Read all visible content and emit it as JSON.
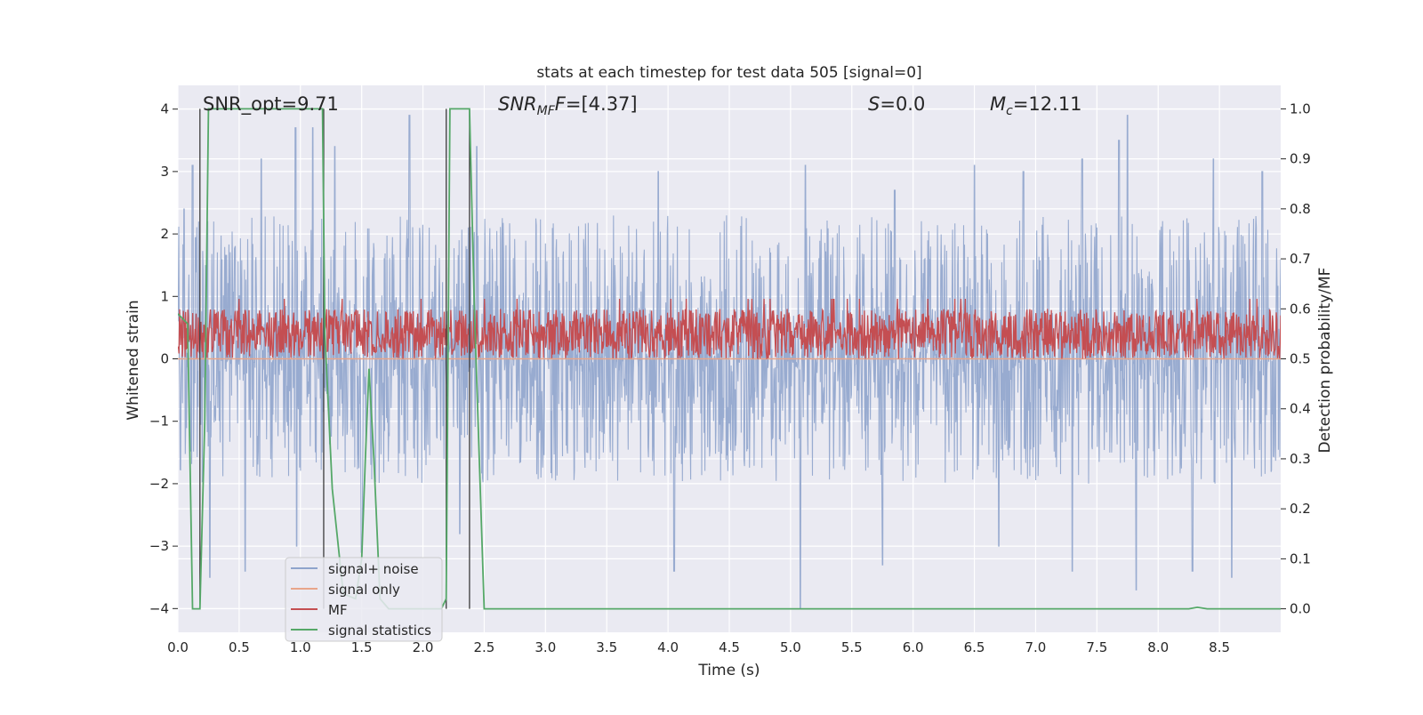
{
  "chart_data": {
    "type": "line",
    "title": "stats at each timestep for test data 505 [signal=0]",
    "xlabel": "Time (s)",
    "ylabel_left": "Whitened strain",
    "ylabel_right": "Detection probability/MF",
    "xlim": [
      0.0,
      9.0
    ],
    "ylim_left": [
      -4.38,
      4.38
    ],
    "ylim_right": [
      -0.047,
      1.047
    ],
    "grid": true,
    "xticks": [
      0.0,
      0.5,
      1.0,
      1.5,
      2.0,
      2.5,
      3.0,
      3.5,
      4.0,
      4.5,
      5.0,
      5.5,
      6.0,
      6.5,
      7.0,
      7.5,
      8.0,
      8.5
    ],
    "xtick_labels": [
      "0.0",
      "0.5",
      "1.0",
      "1.5",
      "2.0",
      "2.5",
      "3.0",
      "3.5",
      "4.0",
      "4.5",
      "5.0",
      "5.5",
      "6.0",
      "6.5",
      "7.0",
      "7.5",
      "8.0",
      "8.5"
    ],
    "yticks_left": [
      4,
      3,
      2,
      1,
      0,
      -1,
      -2,
      -3,
      -4
    ],
    "ytick_labels_left": [
      "4",
      "3",
      "2",
      "1",
      "0",
      "−1",
      "−2",
      "−3",
      "−4"
    ],
    "yticks_right": [
      1.0,
      0.9,
      0.8,
      0.7,
      0.6,
      0.5,
      0.4,
      0.3,
      0.2,
      0.1,
      0.0
    ],
    "ytick_labels_right": [
      "1.0",
      "0.9",
      "0.8",
      "0.7",
      "0.6",
      "0.5",
      "0.4",
      "0.3",
      "0.2",
      "0.1",
      "0.0"
    ],
    "annotations": {
      "snr_opt": "SNR_opt=9.71",
      "snr_mf_name": "SNR",
      "snr_mf_sub": "MF",
      "snr_mf_value": "=[4.37]",
      "s_name": "S",
      "s_value": "=0.0",
      "mc_name": "M",
      "mc_sub": "c",
      "mc_value": "=12.11"
    },
    "vertical_lines_x": [
      0.18,
      1.19,
      2.19,
      2.38
    ],
    "series": [
      {
        "name": "signal+ noise",
        "color": "#8fa4cc",
        "axis": "left",
        "envelope": {
          "upper_typical": 2.3,
          "upper_peak": 4.0,
          "lower_typical": -2.0,
          "lower_peak": -4.0
        },
        "peaks": [
          [
            0.05,
            2.4
          ],
          [
            0.12,
            3.1
          ],
          [
            0.26,
            2.9
          ],
          [
            0.68,
            3.2
          ],
          [
            0.96,
            3.7
          ],
          [
            1.1,
            3.7
          ],
          [
            1.28,
            3.4
          ],
          [
            1.89,
            3.9
          ],
          [
            2.44,
            3.4
          ],
          [
            3.92,
            3.0
          ],
          [
            5.12,
            3.1
          ],
          [
            5.85,
            2.7
          ],
          [
            6.5,
            3.1
          ],
          [
            6.9,
            3.0
          ],
          [
            7.38,
            3.2
          ],
          [
            7.75,
            3.9
          ],
          [
            7.68,
            3.5
          ],
          [
            8.45,
            3.2
          ],
          [
            8.85,
            3.0
          ]
        ],
        "troughs": [
          [
            0.26,
            -3.5
          ],
          [
            0.55,
            -3.4
          ],
          [
            0.97,
            -3.0
          ],
          [
            1.5,
            -3.1
          ],
          [
            2.3,
            -2.8
          ],
          [
            4.05,
            -3.4
          ],
          [
            5.08,
            -4.0
          ],
          [
            5.75,
            -3.3
          ],
          [
            6.7,
            -3.0
          ],
          [
            7.3,
            -3.4
          ],
          [
            7.82,
            -3.7
          ],
          [
            8.28,
            -3.4
          ],
          [
            8.6,
            -3.5
          ]
        ]
      },
      {
        "name": "signal only",
        "color": "#e8a58a",
        "axis": "left",
        "values": "flat at 0"
      },
      {
        "name": "MF",
        "color": "#c44e52",
        "axis": "right",
        "band": [
          0.5,
          0.6
        ],
        "peak_max": 0.62
      },
      {
        "name": "signal statistics",
        "color": "#55a868",
        "axis": "right",
        "x": [
          0.0,
          0.08,
          0.12,
          0.18,
          0.22,
          0.25,
          0.3,
          0.9,
          1.18,
          1.2,
          1.26,
          1.35,
          1.45,
          1.5,
          1.53,
          1.56,
          1.6,
          1.65,
          1.72,
          2.15,
          2.19,
          2.22,
          2.3,
          2.38,
          2.42,
          2.5,
          8.25,
          8.32,
          8.4,
          9.0
        ],
        "y": [
          0.59,
          0.57,
          0.0,
          0.0,
          0.38,
          1.0,
          1.0,
          1.0,
          1.0,
          0.55,
          0.24,
          0.03,
          0.02,
          0.1,
          0.3,
          0.48,
          0.3,
          0.02,
          0.0,
          0.0,
          0.02,
          1.0,
          1.0,
          1.0,
          0.6,
          0.0,
          0.0,
          0.003,
          0.0,
          0.0
        ]
      }
    ],
    "legend": {
      "placement": "lower-left",
      "entries": [
        "signal+ noise",
        "signal only",
        "MF",
        "signal statistics"
      ]
    }
  },
  "colors": {
    "axes_bg": "#eaeaf2",
    "grid": "#ffffff",
    "noise": "#8fa4cc",
    "signal_only": "#e8a58a",
    "mf": "#c44e52",
    "stats": "#55a868",
    "vline": "#3c3c3c"
  }
}
